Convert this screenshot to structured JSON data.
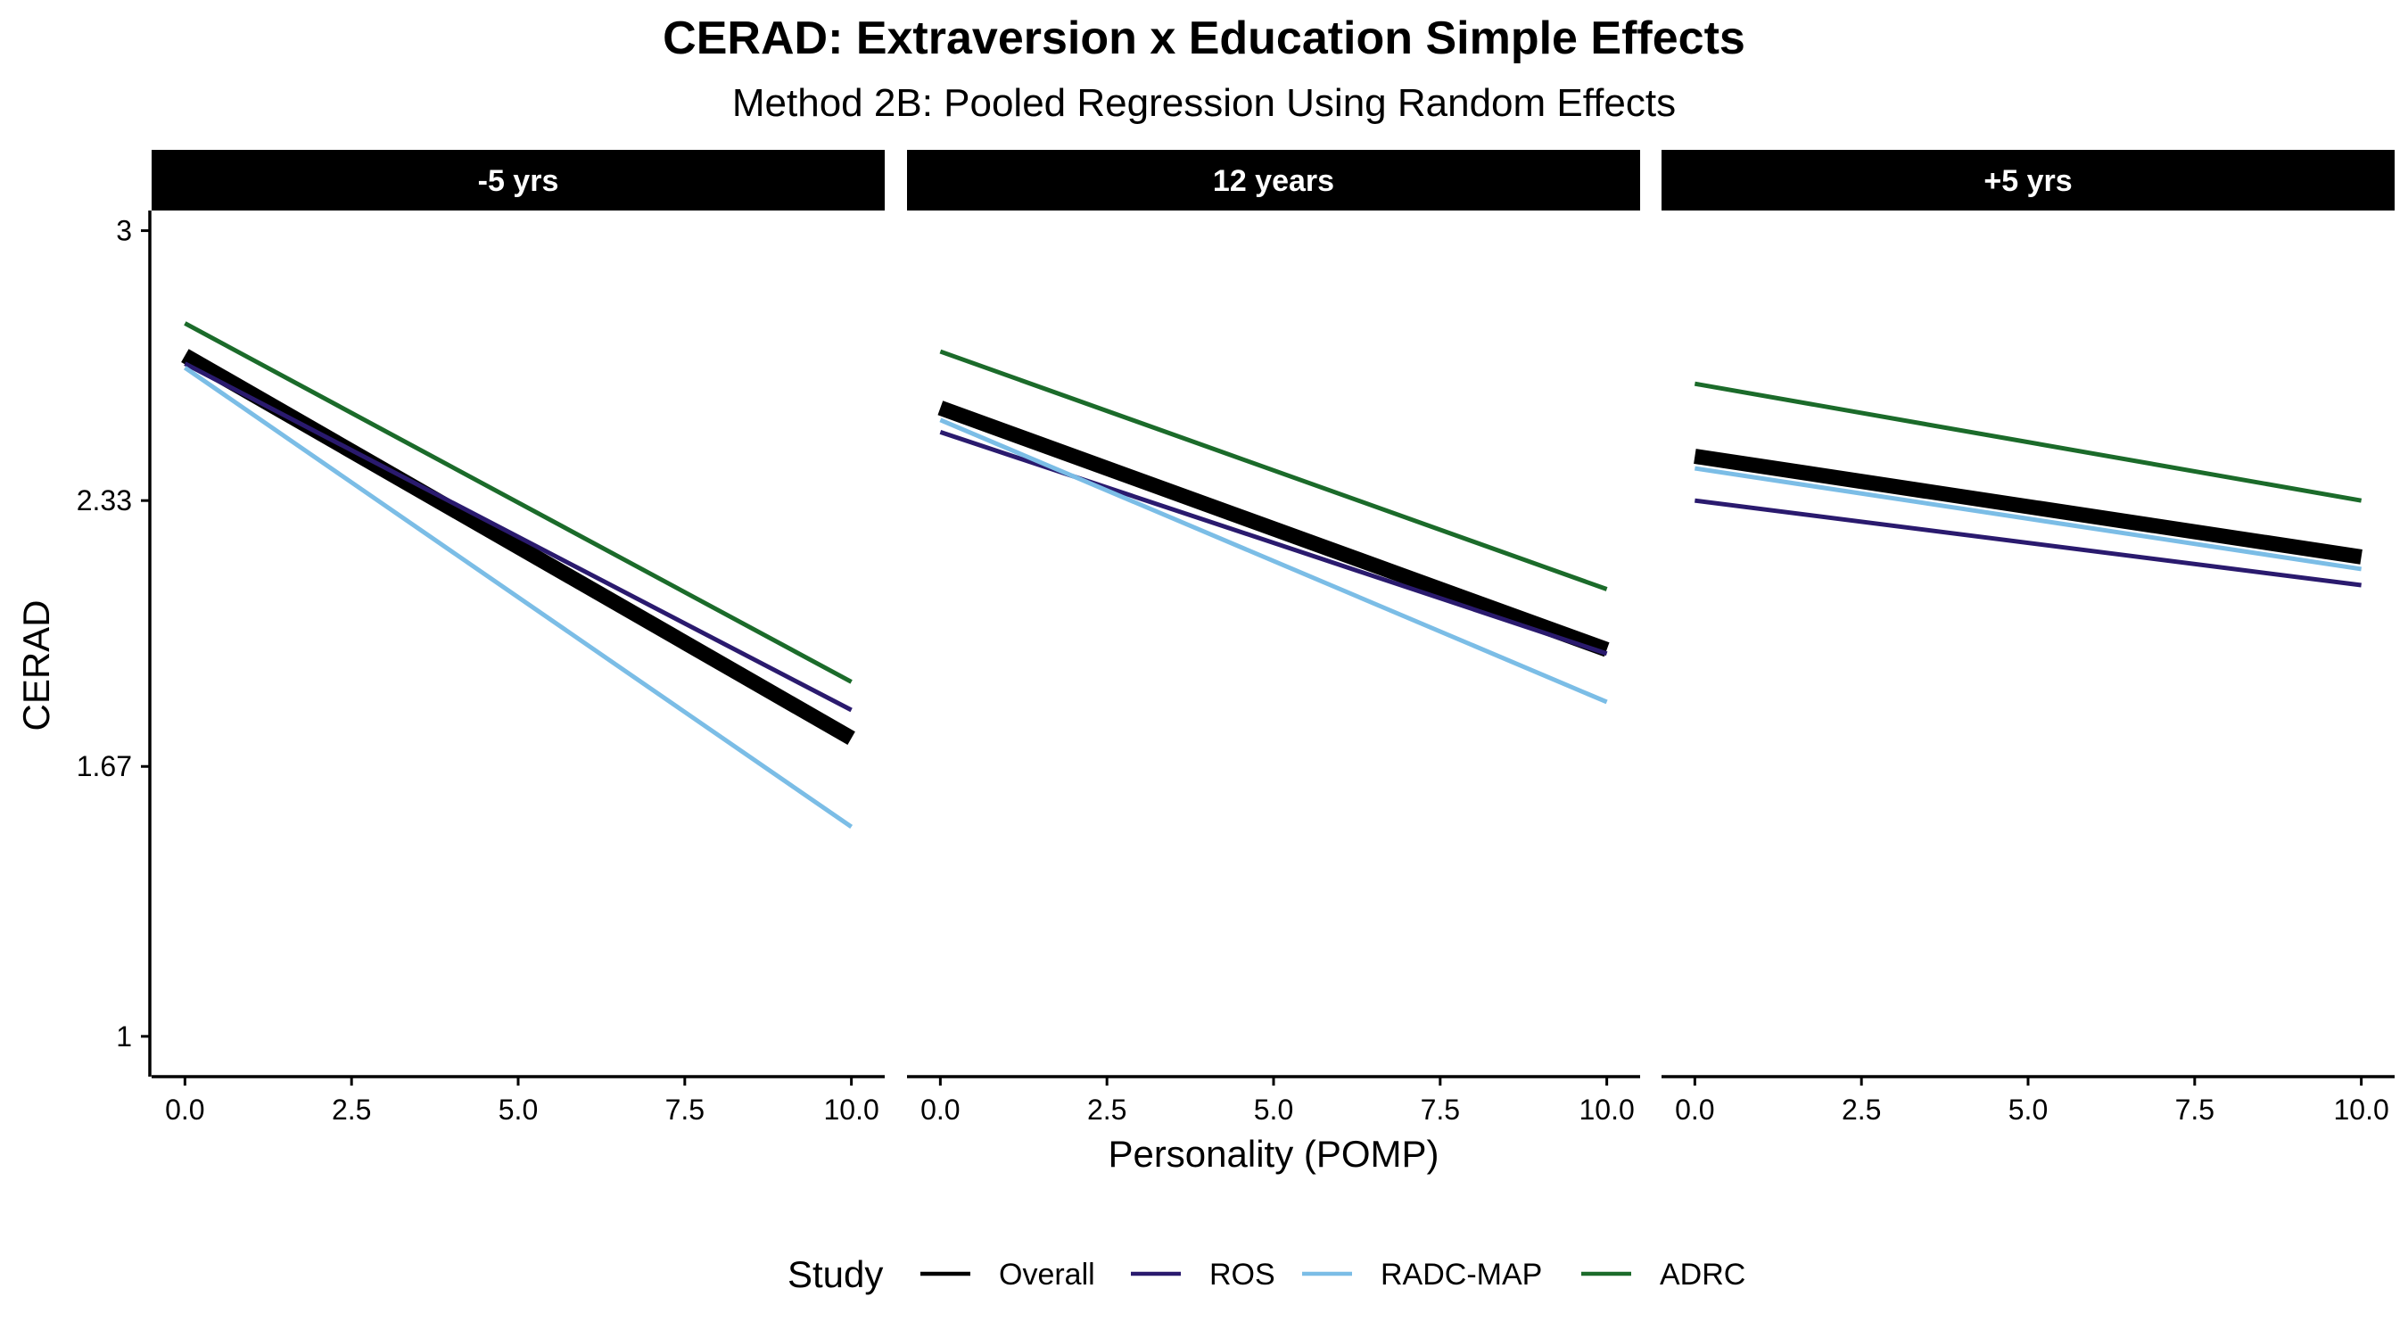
{
  "chart_data": {
    "type": "line",
    "title": "CERAD: Extraversion x Education Simple Effects",
    "subtitle": "Method 2B: Pooled Regression Using Random Effects",
    "xlabel": "Personality (POMP)",
    "ylabel": "CERAD",
    "xlim": [
      -0.5,
      10.5
    ],
    "ylim": [
      0.9,
      3.05
    ],
    "x_ticks": [
      0,
      2.5,
      5,
      7.5,
      10
    ],
    "x_tick_labels": [
      "0.0",
      "2.5",
      "5.0",
      "7.5",
      "10.0"
    ],
    "y_ticks": [
      1,
      1.67,
      2.33,
      3
    ],
    "y_tick_labels": [
      "1",
      "1.67",
      "2.33",
      "3"
    ],
    "grid": false,
    "legend": {
      "title": "Study",
      "position": "bottom"
    },
    "series_styles": [
      {
        "name": "Overall",
        "color": "#000000"
      },
      {
        "name": "ROS",
        "color": "#2a1a6e"
      },
      {
        "name": "RADC-MAP",
        "color": "#7bbde6"
      },
      {
        "name": "ADRC",
        "color": "#1b6b2a"
      }
    ],
    "panels": [
      {
        "label": "-5 yrs",
        "x": [
          0,
          10
        ],
        "series": [
          {
            "name": "Overall",
            "values": [
              2.69,
              1.74
            ]
          },
          {
            "name": "ROS",
            "values": [
              2.67,
              1.81
            ]
          },
          {
            "name": "RADC-MAP",
            "values": [
              2.66,
              1.52
            ]
          },
          {
            "name": "ADRC",
            "values": [
              2.77,
              1.88
            ]
          }
        ]
      },
      {
        "label": "12 years",
        "x": [
          0,
          10
        ],
        "series": [
          {
            "name": "Overall",
            "values": [
              2.56,
              1.96
            ]
          },
          {
            "name": "ROS",
            "values": [
              2.5,
              1.95
            ]
          },
          {
            "name": "RADC-MAP",
            "values": [
              2.53,
              1.83
            ]
          },
          {
            "name": "ADRC",
            "values": [
              2.7,
              2.11
            ]
          }
        ]
      },
      {
        "label": "+5 yrs",
        "x": [
          0,
          10
        ],
        "series": [
          {
            "name": "Overall",
            "values": [
              2.44,
              2.19
            ]
          },
          {
            "name": "ROS",
            "values": [
              2.33,
              2.12
            ]
          },
          {
            "name": "RADC-MAP",
            "values": [
              2.41,
              2.16
            ]
          },
          {
            "name": "ADRC",
            "values": [
              2.62,
              2.33
            ]
          }
        ]
      }
    ]
  }
}
